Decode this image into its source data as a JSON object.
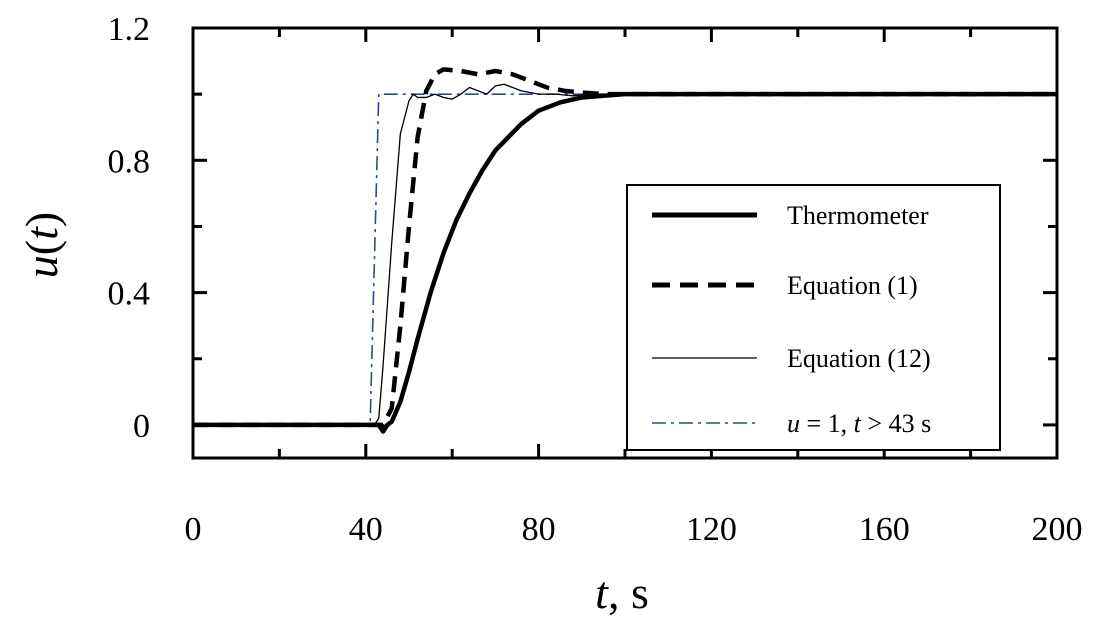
{
  "chart_data": {
    "type": "line",
    "title": "",
    "xlabel": {
      "var": "t",
      "rest": ", s"
    },
    "ylabel": {
      "var": "u",
      "paren_open": "(",
      "arg": "t",
      "paren_close": ")"
    },
    "xlim": [
      0,
      200
    ],
    "ylim": [
      -0.1,
      1.2
    ],
    "xticks": [
      0,
      40,
      80,
      120,
      160,
      200
    ],
    "yticks": [
      0,
      0.4,
      0.8,
      1.2
    ],
    "xtick_labels": [
      "0",
      "40",
      "80",
      "120",
      "160",
      "200"
    ],
    "ytick_labels": [
      "0",
      "0.4",
      "0.8",
      "1.2"
    ],
    "grid": false,
    "legend_position": "lower-right",
    "series": [
      {
        "name": "Thermometer",
        "style": "thick-solid",
        "color": "#000000",
        "x": [
          0,
          40,
          43,
          44,
          45,
          46,
          48,
          50,
          52,
          55,
          58,
          61,
          64,
          67,
          70,
          73,
          76,
          80,
          85,
          90,
          95,
          100,
          110,
          120,
          140,
          160,
          180,
          200
        ],
        "y": [
          0,
          0,
          0,
          -0.02,
          0,
          0.01,
          0.07,
          0.16,
          0.26,
          0.4,
          0.52,
          0.62,
          0.7,
          0.77,
          0.83,
          0.87,
          0.91,
          0.95,
          0.975,
          0.99,
          0.995,
          1.0,
          1.0,
          1.0,
          1.0,
          1.0,
          1.0,
          1.0
        ]
      },
      {
        "name": "Equation (1)",
        "style": "thick-dashed",
        "color": "#000000",
        "x": [
          0,
          44,
          46,
          48,
          50,
          52,
          54,
          56,
          58,
          62,
          66,
          70,
          74,
          78,
          82,
          86,
          90,
          95,
          100,
          110,
          120,
          140,
          160,
          180,
          200
        ],
        "y": [
          0,
          0,
          0.05,
          0.3,
          0.6,
          0.87,
          1.01,
          1.06,
          1.075,
          1.07,
          1.06,
          1.07,
          1.06,
          1.04,
          1.02,
          1.01,
          1.005,
          1.0,
          1.0,
          1.0,
          1.0,
          1.0,
          1.0,
          1.0,
          1.0
        ]
      },
      {
        "name": "Equation (12)",
        "style": "thin-solid",
        "color": "#000000",
        "x": [
          0,
          42,
          43,
          44,
          46,
          48,
          50,
          51,
          52,
          54,
          56,
          58,
          60,
          62,
          64,
          66,
          68,
          70,
          72,
          74,
          76,
          80,
          84,
          88,
          92,
          100,
          110,
          120,
          130,
          140,
          150,
          160,
          170,
          180,
          190,
          200
        ],
        "y": [
          0,
          0,
          0.02,
          0.18,
          0.55,
          0.88,
          0.98,
          1.0,
          0.99,
          0.99,
          1.0,
          0.99,
          0.985,
          1.0,
          1.02,
          1.01,
          1.0,
          1.025,
          1.03,
          1.02,
          1.01,
          1.0,
          1.0,
          0.995,
          1.0,
          1.0,
          0.995,
          1.0,
          1.0,
          0.995,
          1.0,
          1.005,
          1.0,
          0.995,
          1.0,
          1.0
        ]
      },
      {
        "name_parts": {
          "u": "u",
          "mid": " = 1, ",
          "t": "t",
          "rest": " > 43 s"
        },
        "style": "dash-dot",
        "color": "#2a4a8e",
        "x": [
          0,
          41,
          43,
          200
        ],
        "y": [
          0,
          0,
          1,
          1
        ]
      }
    ]
  }
}
